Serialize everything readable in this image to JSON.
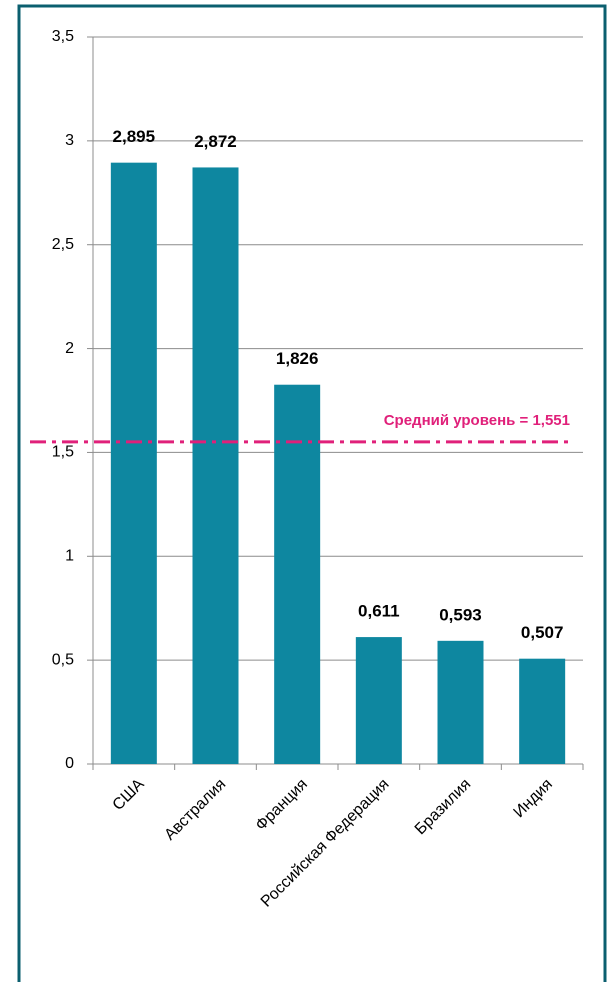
{
  "chart_data": {
    "type": "bar",
    "categories": [
      "США",
      "Австралия",
      "Франция",
      "Российская Федерация",
      "Бразилия",
      "Индия"
    ],
    "values": [
      2.895,
      2.872,
      1.826,
      0.611,
      0.593,
      0.507
    ],
    "value_labels": [
      "2,895",
      "2,872",
      "1,826",
      "0,611",
      "0,593",
      "0,507"
    ],
    "color": "#0e87a0",
    "ylim": [
      0,
      3.5
    ],
    "yticks": [
      0,
      {
        "value": 0.5,
        "label": "0,5"
      },
      1,
      {
        "value": 1.5,
        "label": "1,5"
      },
      2,
      {
        "value": 2.5,
        "label": "2,5"
      },
      3,
      {
        "value": 3.5,
        "label": "3,5"
      }
    ],
    "grid": true,
    "reference_line": {
      "value": 1.551,
      "label": "Средний уровень = 1,551",
      "color": "#e0207a"
    }
  }
}
